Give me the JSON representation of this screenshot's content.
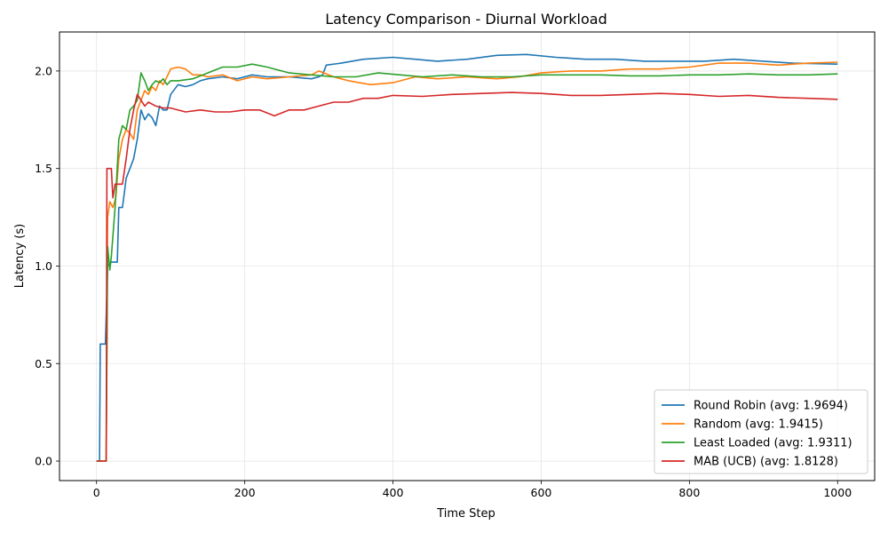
{
  "chart_data": {
    "type": "line",
    "title": "Latency Comparison - Diurnal Workload",
    "xlabel": "Time Step",
    "ylabel": "Latency (s)",
    "xlim": [
      -50,
      1050
    ],
    "ylim": [
      -0.1,
      2.2
    ],
    "xticks": [
      0,
      200,
      400,
      600,
      800,
      1000
    ],
    "xtick_labels": [
      "0",
      "200",
      "400",
      "600",
      "800",
      "1000"
    ],
    "yticks": [
      0.0,
      0.5,
      1.0,
      1.5,
      2.0
    ],
    "ytick_labels": [
      "0.0",
      "0.5",
      "1.0",
      "1.5",
      "2.0"
    ],
    "grid": true,
    "legend_position": "lower-right",
    "series": [
      {
        "name": "Round Robin (avg: 1.9694)",
        "color": "#1f77b4",
        "points": [
          [
            0,
            0
          ],
          [
            4,
            0
          ],
          [
            5,
            0.6
          ],
          [
            12,
            0.6
          ],
          [
            15,
            1.0
          ],
          [
            20,
            1.02
          ],
          [
            28,
            1.02
          ],
          [
            30,
            1.3
          ],
          [
            35,
            1.3
          ],
          [
            40,
            1.45
          ],
          [
            45,
            1.5
          ],
          [
            50,
            1.55
          ],
          [
            55,
            1.65
          ],
          [
            60,
            1.8
          ],
          [
            65,
            1.75
          ],
          [
            70,
            1.78
          ],
          [
            75,
            1.76
          ],
          [
            80,
            1.72
          ],
          [
            85,
            1.82
          ],
          [
            90,
            1.8
          ],
          [
            95,
            1.8
          ],
          [
            100,
            1.88
          ],
          [
            110,
            1.93
          ],
          [
            120,
            1.92
          ],
          [
            130,
            1.93
          ],
          [
            140,
            1.95
          ],
          [
            150,
            1.96
          ],
          [
            170,
            1.97
          ],
          [
            190,
            1.96
          ],
          [
            210,
            1.98
          ],
          [
            230,
            1.97
          ],
          [
            260,
            1.97
          ],
          [
            290,
            1.96
          ],
          [
            300,
            1.97
          ],
          [
            305,
            1.98
          ],
          [
            310,
            2.03
          ],
          [
            330,
            2.04
          ],
          [
            360,
            2.06
          ],
          [
            400,
            2.07
          ],
          [
            430,
            2.06
          ],
          [
            460,
            2.05
          ],
          [
            500,
            2.06
          ],
          [
            540,
            2.08
          ],
          [
            580,
            2.085
          ],
          [
            620,
            2.07
          ],
          [
            660,
            2.06
          ],
          [
            700,
            2.06
          ],
          [
            740,
            2.05
          ],
          [
            780,
            2.05
          ],
          [
            820,
            2.05
          ],
          [
            860,
            2.06
          ],
          [
            900,
            2.05
          ],
          [
            940,
            2.04
          ],
          [
            1000,
            2.035
          ]
        ]
      },
      {
        "name": "Random (avg: 1.9415)",
        "color": "#ff7f0e",
        "points": [
          [
            0,
            0
          ],
          [
            13,
            0
          ],
          [
            15,
            1.25
          ],
          [
            18,
            1.33
          ],
          [
            22,
            1.3
          ],
          [
            26,
            1.35
          ],
          [
            30,
            1.55
          ],
          [
            35,
            1.65
          ],
          [
            40,
            1.7
          ],
          [
            45,
            1.68
          ],
          [
            50,
            1.65
          ],
          [
            55,
            1.8
          ],
          [
            60,
            1.85
          ],
          [
            65,
            1.9
          ],
          [
            70,
            1.88
          ],
          [
            75,
            1.92
          ],
          [
            80,
            1.9
          ],
          [
            85,
            1.95
          ],
          [
            90,
            1.93
          ],
          [
            95,
            1.97
          ],
          [
            100,
            2.01
          ],
          [
            110,
            2.02
          ],
          [
            120,
            2.01
          ],
          [
            130,
            1.98
          ],
          [
            140,
            1.98
          ],
          [
            150,
            1.97
          ],
          [
            170,
            1.98
          ],
          [
            190,
            1.95
          ],
          [
            210,
            1.97
          ],
          [
            230,
            1.96
          ],
          [
            260,
            1.97
          ],
          [
            290,
            1.98
          ],
          [
            300,
            2.0
          ],
          [
            320,
            1.97
          ],
          [
            340,
            1.95
          ],
          [
            370,
            1.93
          ],
          [
            400,
            1.94
          ],
          [
            430,
            1.97
          ],
          [
            460,
            1.96
          ],
          [
            500,
            1.97
          ],
          [
            540,
            1.96
          ],
          [
            570,
            1.97
          ],
          [
            600,
            1.99
          ],
          [
            640,
            2.0
          ],
          [
            680,
            2.0
          ],
          [
            720,
            2.01
          ],
          [
            760,
            2.01
          ],
          [
            800,
            2.02
          ],
          [
            840,
            2.04
          ],
          [
            880,
            2.04
          ],
          [
            920,
            2.03
          ],
          [
            960,
            2.04
          ],
          [
            1000,
            2.045
          ]
        ]
      },
      {
        "name": "Least Loaded (avg: 1.9311)",
        "color": "#2ca02c",
        "points": [
          [
            0,
            0
          ],
          [
            13,
            0
          ],
          [
            15,
            1.1
          ],
          [
            18,
            0.98
          ],
          [
            20,
            1.05
          ],
          [
            25,
            1.3
          ],
          [
            30,
            1.65
          ],
          [
            35,
            1.72
          ],
          [
            40,
            1.7
          ],
          [
            45,
            1.8
          ],
          [
            50,
            1.82
          ],
          [
            55,
            1.85
          ],
          [
            60,
            1.99
          ],
          [
            65,
            1.95
          ],
          [
            70,
            1.9
          ],
          [
            75,
            1.93
          ],
          [
            80,
            1.95
          ],
          [
            85,
            1.94
          ],
          [
            90,
            1.96
          ],
          [
            95,
            1.93
          ],
          [
            100,
            1.95
          ],
          [
            110,
            1.95
          ],
          [
            130,
            1.96
          ],
          [
            150,
            1.99
          ],
          [
            170,
            2.02
          ],
          [
            190,
            2.02
          ],
          [
            210,
            2.035
          ],
          [
            230,
            2.02
          ],
          [
            260,
            1.99
          ],
          [
            290,
            1.98
          ],
          [
            320,
            1.97
          ],
          [
            350,
            1.97
          ],
          [
            380,
            1.99
          ],
          [
            410,
            1.98
          ],
          [
            440,
            1.97
          ],
          [
            480,
            1.98
          ],
          [
            520,
            1.97
          ],
          [
            560,
            1.97
          ],
          [
            600,
            1.98
          ],
          [
            640,
            1.98
          ],
          [
            680,
            1.98
          ],
          [
            720,
            1.975
          ],
          [
            760,
            1.975
          ],
          [
            800,
            1.98
          ],
          [
            840,
            1.98
          ],
          [
            880,
            1.985
          ],
          [
            920,
            1.98
          ],
          [
            960,
            1.98
          ],
          [
            1000,
            1.985
          ]
        ]
      },
      {
        "name": "MAB (UCB) (avg: 1.8128)",
        "color": "#d62728",
        "points": [
          [
            0,
            0
          ],
          [
            13,
            0
          ],
          [
            14,
            1.5
          ],
          [
            20,
            1.5
          ],
          [
            22,
            1.35
          ],
          [
            25,
            1.42
          ],
          [
            35,
            1.42
          ],
          [
            40,
            1.55
          ],
          [
            45,
            1.7
          ],
          [
            50,
            1.8
          ],
          [
            55,
            1.88
          ],
          [
            60,
            1.85
          ],
          [
            65,
            1.82
          ],
          [
            70,
            1.84
          ],
          [
            80,
            1.82
          ],
          [
            90,
            1.81
          ],
          [
            100,
            1.81
          ],
          [
            120,
            1.79
          ],
          [
            140,
            1.8
          ],
          [
            160,
            1.79
          ],
          [
            180,
            1.79
          ],
          [
            200,
            1.8
          ],
          [
            220,
            1.8
          ],
          [
            240,
            1.77
          ],
          [
            260,
            1.8
          ],
          [
            280,
            1.8
          ],
          [
            300,
            1.82
          ],
          [
            320,
            1.84
          ],
          [
            340,
            1.84
          ],
          [
            360,
            1.86
          ],
          [
            380,
            1.86
          ],
          [
            400,
            1.875
          ],
          [
            440,
            1.87
          ],
          [
            480,
            1.88
          ],
          [
            520,
            1.885
          ],
          [
            560,
            1.89
          ],
          [
            600,
            1.885
          ],
          [
            640,
            1.875
          ],
          [
            680,
            1.875
          ],
          [
            720,
            1.88
          ],
          [
            760,
            1.885
          ],
          [
            800,
            1.88
          ],
          [
            840,
            1.87
          ],
          [
            880,
            1.875
          ],
          [
            920,
            1.865
          ],
          [
            960,
            1.86
          ],
          [
            1000,
            1.855
          ]
        ]
      }
    ]
  }
}
